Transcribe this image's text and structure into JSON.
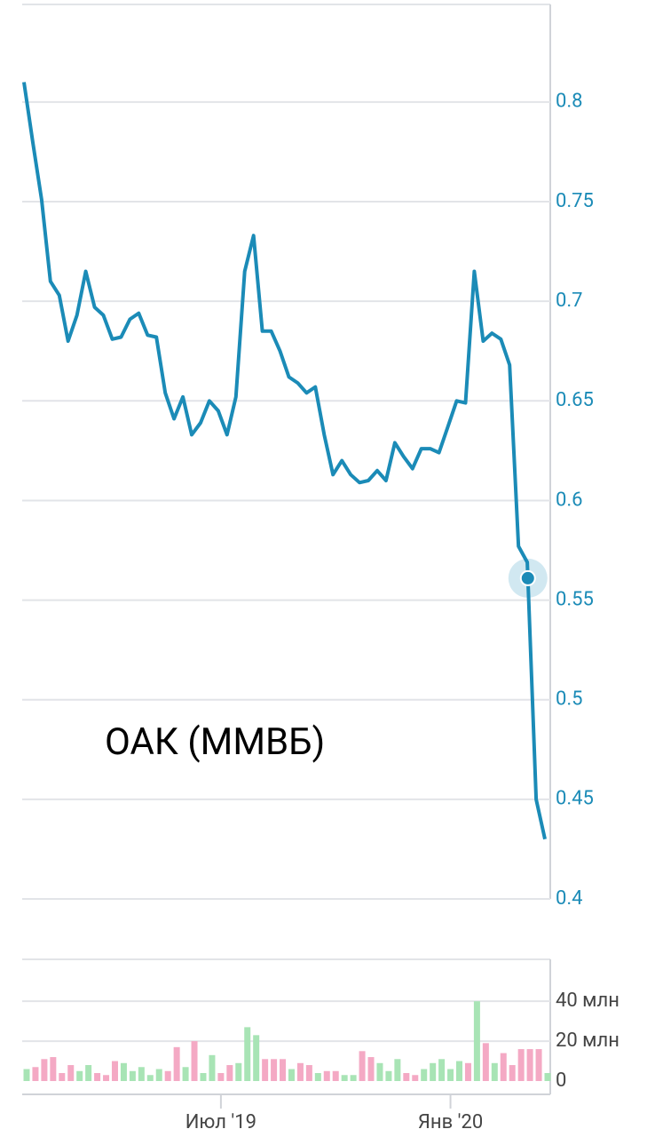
{
  "chart_data": [
    {
      "type": "line",
      "color": "#1b8bb7",
      "annotation": "ОАК (ММВБ)",
      "values": [
        0.81,
        0.78,
        0.751,
        0.71,
        0.703,
        0.68,
        0.693,
        0.715,
        0.697,
        0.693,
        0.681,
        0.682,
        0.691,
        0.694,
        0.683,
        0.682,
        0.654,
        0.641,
        0.652,
        0.633,
        0.639,
        0.65,
        0.645,
        0.633,
        0.652,
        0.715,
        0.733,
        0.685,
        0.685,
        0.675,
        0.662,
        0.659,
        0.654,
        0.657,
        0.633,
        0.613,
        0.62,
        0.613,
        0.609,
        0.61,
        0.615,
        0.61,
        0.629,
        0.622,
        0.616,
        0.626,
        0.626,
        0.624,
        0.637,
        0.65,
        0.649,
        0.715,
        0.68,
        0.684,
        0.681,
        0.668,
        0.577,
        0.569,
        0.45,
        0.43
      ],
      "marker_value": 0.561,
      "ylim": [
        0.4,
        0.849
      ],
      "yticks": [
        0.4,
        0.45,
        0.5,
        0.55,
        0.6,
        0.65,
        0.7,
        0.75,
        0.8
      ],
      "grid": true
    },
    {
      "type": "bar",
      "categories": [
        null,
        null,
        null,
        null,
        null,
        null,
        null,
        null,
        null,
        null,
        null,
        null,
        null,
        null,
        null,
        null,
        null,
        null,
        null,
        null,
        null,
        null,
        "Июл '19",
        null,
        null,
        null,
        null,
        null,
        null,
        null,
        null,
        null,
        null,
        null,
        null,
        null,
        null,
        null,
        null,
        null,
        null,
        null,
        null,
        null,
        null,
        null,
        null,
        null,
        "Янв '20",
        null,
        null,
        null,
        null,
        null,
        null,
        null,
        null,
        null,
        null,
        null
      ],
      "values": [
        6,
        7,
        11,
        12,
        4,
        8,
        5,
        8,
        4,
        3,
        10,
        9,
        5,
        7,
        3,
        6,
        5,
        17,
        7,
        20,
        4,
        13,
        4,
        8,
        9,
        27,
        23,
        11,
        11,
        11,
        6,
        9,
        8,
        4,
        5,
        5,
        3,
        3,
        15,
        12,
        9,
        5,
        11,
        4,
        3,
        6,
        9,
        11,
        6,
        10,
        9,
        40,
        19,
        9,
        14,
        8,
        16,
        16,
        16,
        4
      ],
      "colors": [
        "#a8e4b5",
        "#f4a9c4",
        "#f4a9c4",
        "#f4a9c4",
        "#f4a9c4",
        "#f4a9c4",
        "#a8e4b5",
        "#a8e4b5",
        "#f4a9c4",
        "#f4a9c4",
        "#f4a9c4",
        "#a8e4b5",
        "#a8e4b5",
        "#a8e4b5",
        "#a8e4b5",
        "#a8e4b5",
        "#f4a9c4",
        "#f4a9c4",
        "#a8e4b5",
        "#f4a9c4",
        "#a8e4b5",
        "#a8e4b5",
        "#f4a9c4",
        "#f4a9c4",
        "#a8e4b5",
        "#a8e4b5",
        "#a8e4b5",
        "#f4a9c4",
        "#f4a9c4",
        "#f4a9c4",
        "#a8e4b5",
        "#f4a9c4",
        "#f4a9c4",
        "#a8e4b5",
        "#f4a9c4",
        "#f4a9c4",
        "#a8e4b5",
        "#a8e4b5",
        "#f4a9c4",
        "#f4a9c4",
        "#a8e4b5",
        "#a8e4b5",
        "#a8e4b5",
        "#f4a9c4",
        "#f4a9c4",
        "#a8e4b5",
        "#a8e4b5",
        "#a8e4b5",
        "#a8e4b5",
        "#a8e4b5",
        "#f4a9c4",
        "#a8e4b5",
        "#f4a9c4",
        "#a8e4b5",
        "#f4a9c4",
        "#f4a9c4",
        "#f4a9c4",
        "#f4a9c4",
        "#f4a9c4",
        "#a8e4b5"
      ],
      "ylim": [
        0,
        61
      ],
      "yticks": [
        0,
        {
          "value": 20,
          "label": "20 млн"
        },
        {
          "value": 40,
          "label": "40 млн"
        }
      ],
      "grid": true
    }
  ]
}
